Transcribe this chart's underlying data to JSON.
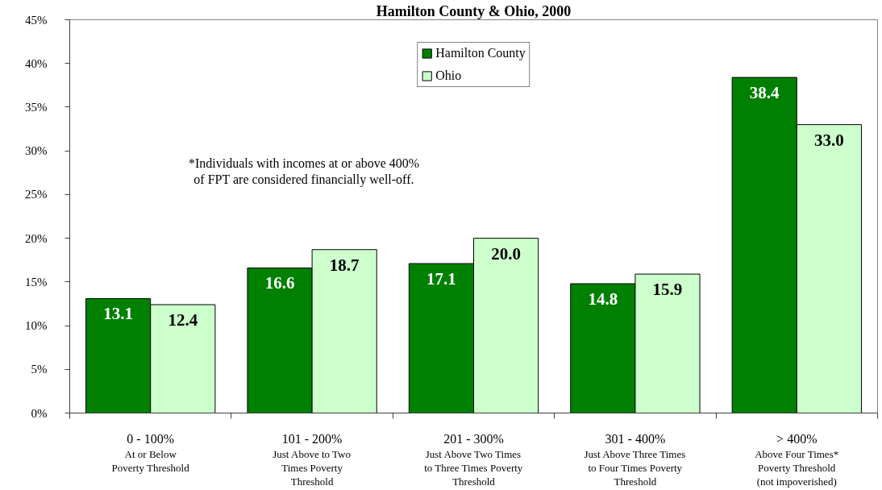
{
  "chart_data": {
    "type": "bar",
    "title": "Hamilton County & Ohio, 2000",
    "categories": [
      "0 - 100%\nAt or Below\nPoverty Threshold",
      "101 - 200%\nJust Above to Two\nTimes Poverty\nThreshold",
      "201 - 300%\nJust Above Two Times\nto Three Times Poverty\nThreshold",
      "301 - 400%\nJust Above Three Times\nto Four Times Poverty\nThreshold",
      "> 400%\nAbove Four Times*\nPoverty Threshold\n(not impoverished)"
    ],
    "series": [
      {
        "name": "Hamilton County",
        "color": "#008000",
        "values": [
          13.1,
          16.6,
          17.1,
          14.8,
          38.4
        ],
        "value_labels": [
          "13.1",
          "16.6",
          "17.1",
          "14.8",
          "38.4"
        ]
      },
      {
        "name": "Ohio",
        "color": "#ccffcc",
        "values": [
          12.4,
          18.7,
          20.0,
          15.9,
          33.0
        ],
        "value_labels": [
          "12.4",
          "18.7",
          "20.0",
          "15.9",
          "33.0"
        ]
      }
    ],
    "ylim": [
      0,
      45
    ],
    "yticks": [
      {
        "value": 0,
        "label": "0%"
      },
      {
        "value": 5,
        "label": "5%"
      },
      {
        "value": 10,
        "label": "10%"
      },
      {
        "value": 15,
        "label": "15%"
      },
      {
        "value": 20,
        "label": "20%"
      },
      {
        "value": 25,
        "label": "25%"
      },
      {
        "value": 30,
        "label": "30%"
      },
      {
        "value": 35,
        "label": "35%"
      },
      {
        "value": 40,
        "label": "40%"
      },
      {
        "value": 45,
        "label": "45%"
      }
    ],
    "legend": "top",
    "annotations": [
      "*Individuals with incomes at or above 400%\nof FPT are considered financially well-off."
    ]
  }
}
